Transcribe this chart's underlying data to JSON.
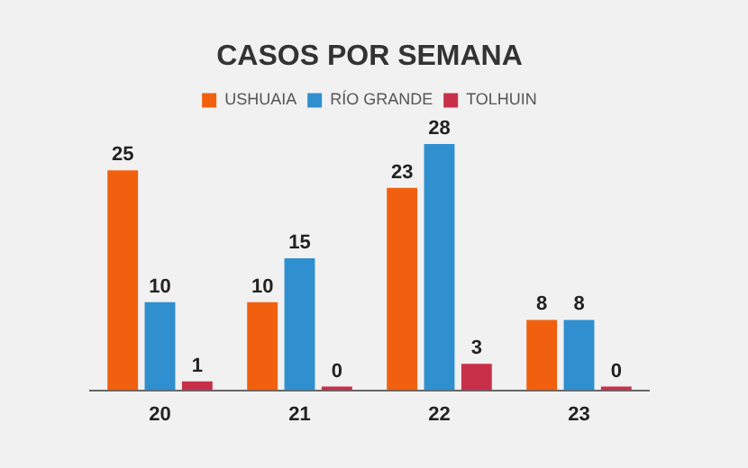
{
  "chart_data": {
    "type": "bar",
    "title": "CASOS POR SEMANA",
    "categories": [
      "20",
      "21",
      "22",
      "23"
    ],
    "series": [
      {
        "name": "USHUAIA",
        "color": "#f0600f",
        "values": [
          25,
          10,
          23,
          8
        ]
      },
      {
        "name": "RÍO GRANDE",
        "color": "#2f8fcf",
        "values": [
          10,
          15,
          28,
          8
        ]
      },
      {
        "name": "TOLHUIN",
        "color": "#c8304a",
        "values": [
          1,
          0,
          3,
          0
        ]
      }
    ],
    "data_labels": true,
    "legend": "top",
    "grid": false
  }
}
